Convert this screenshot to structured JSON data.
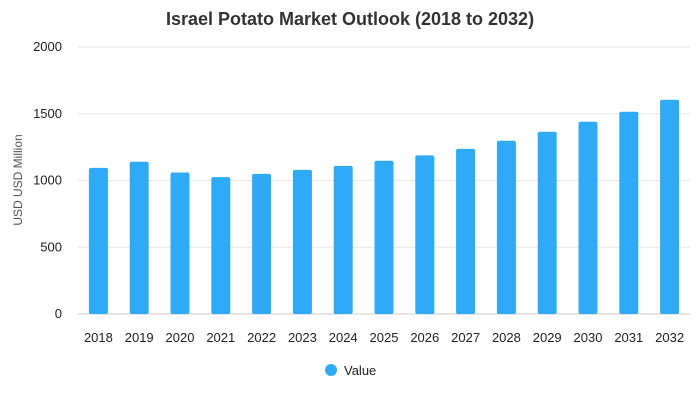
{
  "chart_data": {
    "type": "bar",
    "title": "Israel Potato Market Outlook (2018 to 2032)",
    "xlabel": "",
    "ylabel": "USD USD Million",
    "ylim": [
      0,
      2000
    ],
    "yticks": [
      0,
      500,
      1000,
      1500,
      2000
    ],
    "grid": true,
    "legend_position": "bottom",
    "categories": [
      "2018",
      "2019",
      "2020",
      "2021",
      "2022",
      "2023",
      "2024",
      "2025",
      "2026",
      "2027",
      "2028",
      "2029",
      "2030",
      "2031",
      "2032"
    ],
    "series": [
      {
        "name": "Value",
        "color": "#2eaaf7",
        "values": [
          1095,
          1140,
          1060,
          1025,
          1050,
          1080,
          1110,
          1148,
          1188,
          1237,
          1298,
          1365,
          1440,
          1515,
          1605
        ]
      }
    ]
  }
}
